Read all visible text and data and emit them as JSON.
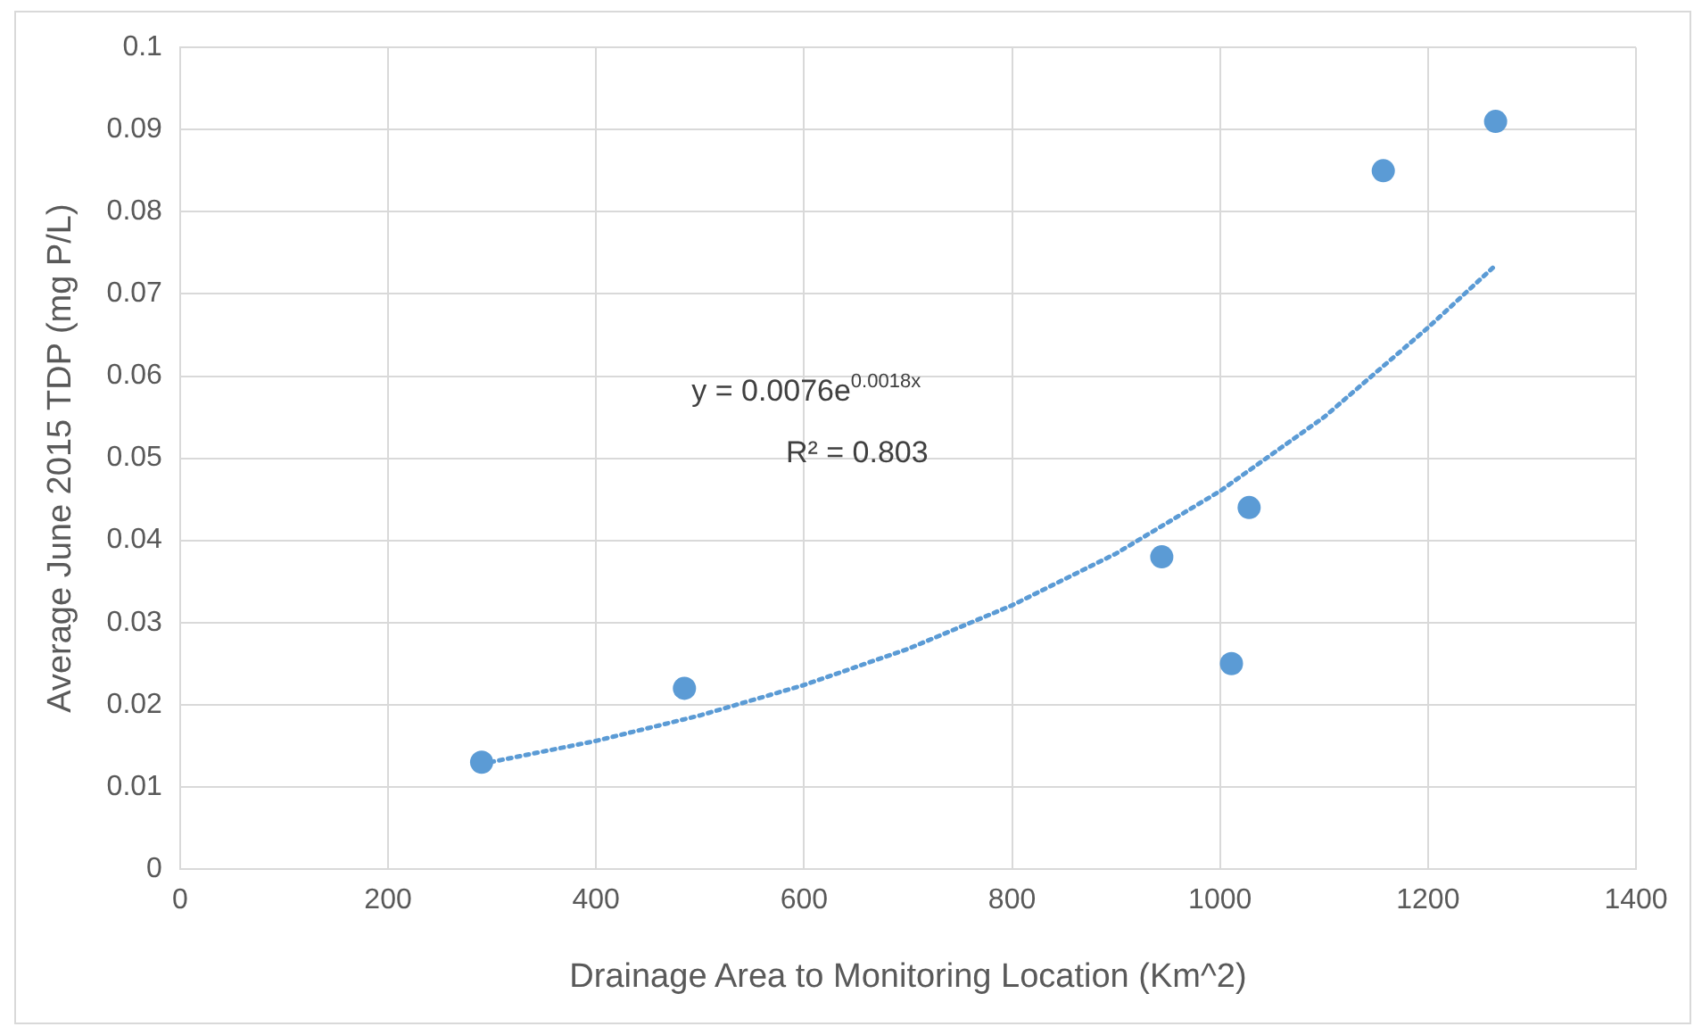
{
  "chart_data": {
    "type": "scatter",
    "xlabel": "Drainage Area to Monitoring Location (Km^2)",
    "ylabel": "Average June 2015 TDP (mg P/L)",
    "series": [
      {
        "color": "#5b9bd5",
        "x": [
          290,
          485,
          944,
          1011,
          1028,
          1157,
          1265
        ],
        "values": [
          0.013,
          0.022,
          0.038,
          0.025,
          0.044,
          0.085,
          0.091
        ],
        "marker": "circle"
      },
      {
        "type": "line",
        "color": "#5b9bd5",
        "x": [
          290,
          400,
          500,
          600,
          700,
          800,
          900,
          1000,
          1100,
          1200,
          1265
        ],
        "values": [
          0.0128,
          0.0156,
          0.0187,
          0.0224,
          0.0268,
          0.0321,
          0.0384,
          0.046,
          0.055,
          0.0659,
          0.0735
        ],
        "marker": "none",
        "line_style": "dotted"
      }
    ],
    "xlim": [
      0,
      1400
    ],
    "xticks": [
      0,
      200,
      400,
      600,
      800,
      1000,
      1200,
      1400
    ],
    "ylim": [
      0,
      0.1
    ],
    "yticks": [
      0,
      0.01,
      0.02,
      0.03,
      0.04,
      0.05,
      0.06,
      0.07,
      0.08,
      0.09,
      0.1
    ],
    "grid": true,
    "legend": false,
    "annotations": [
      "y = 0.0076e$^{0.0018x}$",
      "R² = 0.803"
    ]
  }
}
